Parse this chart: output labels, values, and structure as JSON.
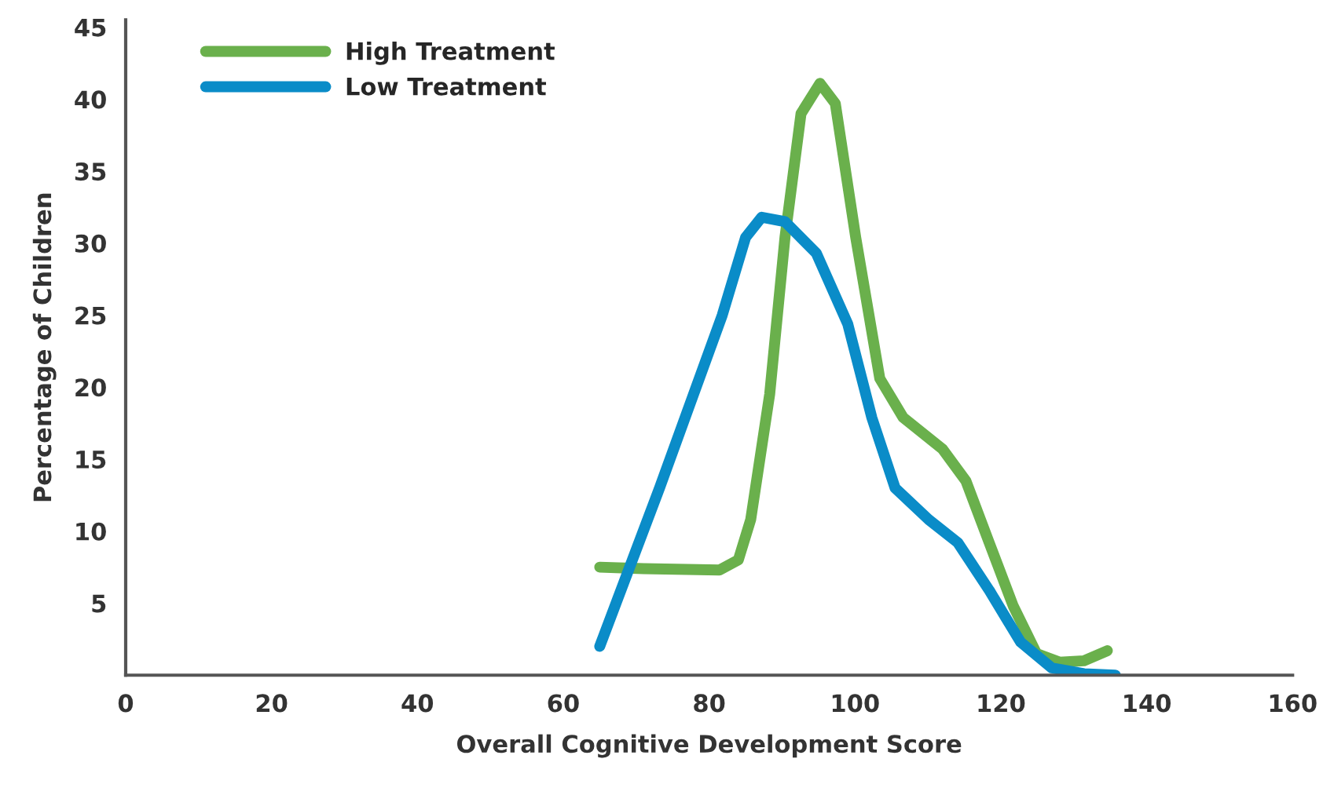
{
  "chart_data": {
    "type": "line",
    "xlabel": "Overall Cognitive Development Score",
    "ylabel": "Percentage of Children",
    "xlim": [
      0,
      160
    ],
    "xticks": [
      0,
      20,
      40,
      60,
      80,
      100,
      120,
      140,
      160
    ],
    "ylim": [
      0,
      45.5
    ],
    "yticks": [
      5,
      10,
      15,
      20,
      25,
      30,
      35,
      40,
      45
    ],
    "grid": false,
    "legend": "top left",
    "line_style": "solid",
    "series": [
      {
        "name": "High Treatment",
        "color": "#6ab04c",
        "x": [
          65,
          71,
          81.4,
          84,
          85.7,
          88.3,
          90.4,
          92.6,
          95.2,
          97.3,
          100.1,
          103.4,
          106.6,
          112,
          115.2,
          118.4,
          121.7,
          124.9,
          128.1,
          131.4,
          134.6
        ],
        "values": [
          7.5,
          7.4,
          7.3,
          8,
          10.8,
          19.5,
          30.4,
          39,
          41.1,
          39.7,
          30.4,
          20.6,
          17.9,
          15.7,
          13.5,
          9.2,
          4.8,
          1.5,
          0.9,
          1,
          1.7
        ]
      },
      {
        "name": "Low Treatment",
        "color": "#0a8cc8",
        "x": [
          65,
          73.2,
          81.8,
          85,
          87.2,
          90.4,
          94.7,
          99,
          102.3,
          105.5,
          110.1,
          114.1,
          118.4,
          122.7,
          127,
          131.4,
          135.7
        ],
        "values": [
          2,
          13,
          25,
          30.4,
          31.8,
          31.5,
          29.3,
          24.4,
          17.9,
          13,
          10.8,
          9.2,
          5.9,
          2.3,
          0.5,
          0.1,
          0
        ]
      }
    ]
  }
}
